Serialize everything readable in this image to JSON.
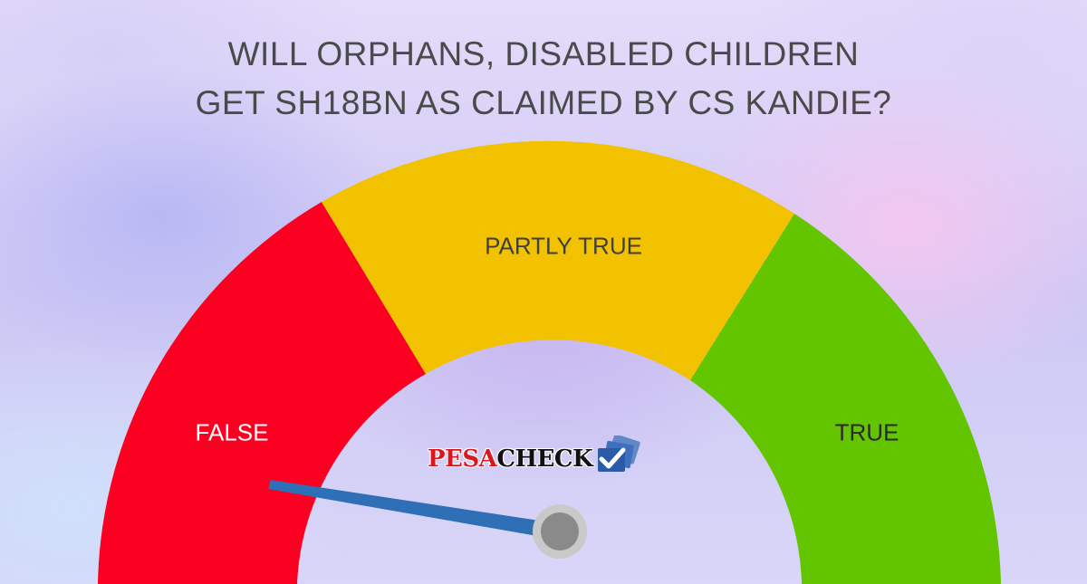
{
  "title": {
    "line1": "WILL ORPHANS, DISABLED CHILDREN",
    "line2": "GET SH18BN AS CLAIMED BY CS KANDIE?"
  },
  "meter": {
    "segments": [
      {
        "label": "FALSE",
        "color": "#fb0020",
        "text_color": "#ffffff"
      },
      {
        "label": "PARTLY TRUE",
        "color": "#f2c200",
        "text_color": "#3f3f3f"
      },
      {
        "label": "TRUE",
        "color": "#63c500",
        "text_color": "#2b2b2b"
      }
    ],
    "needle_color": "#2e6fb5",
    "hub_color": "#8a8a8a",
    "verdict": "FALSE"
  },
  "logo": {
    "pesa": "PESA",
    "check": "CHECK",
    "icon": "checkmark-icon"
  }
}
